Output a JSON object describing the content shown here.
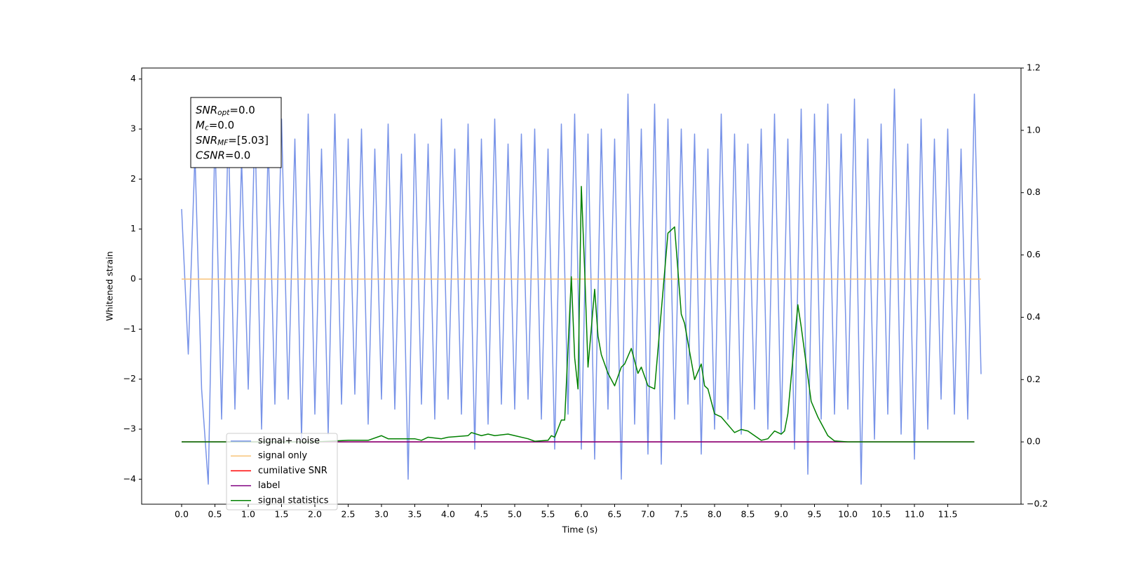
{
  "chart_data": {
    "type": "line",
    "xlabel": "Time (s)",
    "ylabel": "Whitened strain",
    "xlim": [
      -0.6,
      12.6
    ],
    "ylim": [
      -4.5,
      4.22
    ],
    "y2lim": [
      -0.2,
      1.2
    ],
    "xticks": [
      {
        "value": 0,
        "label": "0.0"
      },
      0.5,
      {
        "value": 1,
        "label": "1.0"
      },
      1.5,
      {
        "value": 2,
        "label": "2.0"
      },
      2.5,
      {
        "value": 3,
        "label": "3.0"
      },
      3.5,
      {
        "value": 4,
        "label": "4.0"
      },
      4.5,
      {
        "value": 5,
        "label": "5.0"
      },
      5.5,
      {
        "value": 6,
        "label": "6.0"
      },
      6.5,
      {
        "value": 7,
        "label": "7.0"
      },
      7.5,
      {
        "value": 8,
        "label": "8.0"
      },
      8.5,
      {
        "value": 9,
        "label": "9.0"
      },
      9.5,
      {
        "value": 10,
        "label": "10.0"
      },
      10.5,
      {
        "value": 11,
        "label": "11.0"
      },
      11.5
    ],
    "yticks": [
      {
        "value": -4,
        "label": "−4"
      },
      {
        "value": -3,
        "label": "−3"
      },
      {
        "value": -2,
        "label": "−2"
      },
      {
        "value": -1,
        "label": "−1"
      },
      0,
      1,
      2,
      3,
      4
    ],
    "y2ticks": [
      {
        "value": -0.2,
        "label": "−0.2"
      },
      {
        "value": 0,
        "label": "0.0"
      },
      0.2,
      0.4,
      0.6,
      0.8,
      {
        "value": 1,
        "label": "1.0"
      },
      1.2
    ],
    "legend": "lower left",
    "annotation": [
      {
        "base": "SNR",
        "sub": "opt",
        "rest": "=0.0"
      },
      {
        "base": "M",
        "sub": "c",
        "rest": "=0.0"
      },
      {
        "base": "SNR",
        "sub": "MF",
        "rest": "=[5.03]"
      },
      {
        "base": "CSNR",
        "sub": null,
        "rest": "=0.0"
      }
    ],
    "series": [
      {
        "name": "signal+ noise",
        "color": "#7893e8",
        "axis": "y",
        "x": [
          0,
          0.1,
          0.2,
          0.3,
          0.4,
          0.5,
          0.6,
          0.7,
          0.8,
          0.9,
          1,
          1.1,
          1.2,
          1.3,
          1.4,
          1.5,
          1.6,
          1.7,
          1.8,
          1.9,
          2,
          2.1,
          2.2,
          2.3,
          2.4,
          2.5,
          2.6,
          2.7,
          2.8,
          2.9,
          3,
          3.1,
          3.2,
          3.3,
          3.4,
          3.5,
          3.6,
          3.7,
          3.8,
          3.9,
          4,
          4.1,
          4.2,
          4.3,
          4.4,
          4.5,
          4.6,
          4.7,
          4.8,
          4.9,
          5,
          5.1,
          5.2,
          5.3,
          5.4,
          5.5,
          5.6,
          5.7,
          5.8,
          5.9,
          6,
          6.1,
          6.2,
          6.3,
          6.4,
          6.5,
          6.6,
          6.7,
          6.8,
          6.9,
          7,
          7.1,
          7.2,
          7.3,
          7.4,
          7.5,
          7.6,
          7.7,
          7.8,
          7.9,
          8,
          8.1,
          8.2,
          8.3,
          8.4,
          8.5,
          8.6,
          8.7,
          8.8,
          8.9,
          9,
          9.1,
          9.2,
          9.3,
          9.4,
          9.5,
          9.6,
          9.7,
          9.8,
          9.9,
          10,
          10.1,
          10.2,
          10.3,
          10.4,
          10.5,
          10.6,
          10.7,
          10.8,
          10.9,
          11,
          11.1,
          11.2,
          11.3,
          11.4,
          11.5,
          11.6,
          11.7,
          11.8,
          11.9,
          12
        ],
        "values": [
          1.4,
          -1.5,
          2.5,
          -2.2,
          -4.1,
          2.9,
          -2.8,
          3.0,
          -2.6,
          2.4,
          -2.2,
          3.1,
          -3.0,
          2.7,
          -2.5,
          3.2,
          -2.4,
          2.8,
          -3.2,
          3.3,
          -2.7,
          2.6,
          -3.1,
          3.3,
          -2.5,
          2.8,
          -2.3,
          3.0,
          -2.9,
          2.6,
          -2.4,
          3.1,
          -2.6,
          2.5,
          -4.0,
          2.9,
          -2.5,
          2.7,
          -2.8,
          3.2,
          -2.4,
          2.6,
          -2.7,
          3.1,
          -3.4,
          2.8,
          -2.9,
          3.2,
          -2.5,
          2.7,
          -2.6,
          2.9,
          -2.4,
          3.0,
          -2.8,
          2.6,
          -3.4,
          3.1,
          -2.7,
          3.3,
          -3.4,
          2.9,
          -3.6,
          3.0,
          -2.6,
          2.8,
          -4.0,
          3.7,
          -2.9,
          3.0,
          -3.5,
          3.5,
          -3.7,
          3.2,
          -2.8,
          3.0,
          -2.5,
          2.9,
          -3.5,
          2.6,
          -3.0,
          3.3,
          -2.8,
          2.9,
          -3.1,
          2.7,
          -2.6,
          3.0,
          -3.0,
          3.3,
          -3.1,
          2.8,
          -3.4,
          3.4,
          -3.9,
          3.3,
          -2.8,
          3.5,
          -2.7,
          2.9,
          -2.6,
          3.6,
          -4.1,
          2.8,
          -3.2,
          3.1,
          -2.7,
          3.8,
          -3.1,
          2.7,
          -3.6,
          3.2,
          -3.0,
          2.8,
          -2.4,
          3.0,
          -2.7,
          2.6,
          -2.8,
          3.7,
          -1.9
        ]
      },
      {
        "name": "signal only",
        "color": "#f8c47a",
        "axis": "y",
        "x": [
          0,
          12
        ],
        "values": [
          0,
          0
        ]
      },
      {
        "name": "cumilative SNR",
        "color": "#ff0000",
        "axis": "y2",
        "x": [
          0,
          11.9
        ],
        "values": [
          0,
          0
        ]
      },
      {
        "name": "label",
        "color": "#800080",
        "axis": "y2",
        "x": [
          0,
          11.9
        ],
        "values": [
          0,
          0
        ]
      },
      {
        "name": "signal statistics",
        "color": "#008000",
        "axis": "y2",
        "x": [
          0,
          1,
          2,
          2.5,
          2.8,
          3.0,
          3.1,
          3.5,
          3.6,
          3.7,
          3.9,
          4.0,
          4.3,
          4.35,
          4.5,
          4.6,
          4.7,
          4.9,
          5.0,
          5.2,
          5.3,
          5.5,
          5.55,
          5.6,
          5.7,
          5.75,
          5.85,
          5.9,
          5.95,
          6.0,
          6.05,
          6.1,
          6.2,
          6.25,
          6.3,
          6.4,
          6.5,
          6.6,
          6.65,
          6.75,
          6.85,
          6.9,
          7.0,
          7.1,
          7.3,
          7.4,
          7.5,
          7.55,
          7.7,
          7.8,
          7.85,
          7.9,
          8.0,
          8.1,
          8.3,
          8.4,
          8.5,
          8.6,
          8.7,
          8.8,
          8.9,
          9.0,
          9.05,
          9.1,
          9.25,
          9.3,
          9.45,
          9.55,
          9.7,
          9.8,
          10.0,
          11.9
        ],
        "values": [
          0,
          0,
          0,
          0.005,
          0.005,
          0.02,
          0.01,
          0.01,
          0.005,
          0.015,
          0.01,
          0.015,
          0.02,
          0.03,
          0.02,
          0.025,
          0.02,
          0.025,
          0.02,
          0.01,
          0.002,
          0.005,
          0.02,
          0.015,
          0.07,
          0.07,
          0.53,
          0.27,
          0.17,
          0.82,
          0.55,
          0.24,
          0.49,
          0.34,
          0.28,
          0.22,
          0.18,
          0.24,
          0.25,
          0.3,
          0.22,
          0.24,
          0.18,
          0.17,
          0.67,
          0.69,
          0.41,
          0.38,
          0.2,
          0.25,
          0.18,
          0.17,
          0.09,
          0.08,
          0.03,
          0.04,
          0.035,
          0.02,
          0.005,
          0.01,
          0.035,
          0.025,
          0.035,
          0.09,
          0.44,
          0.37,
          0.13,
          0.08,
          0.02,
          0.003,
          0,
          0
        ]
      }
    ]
  }
}
